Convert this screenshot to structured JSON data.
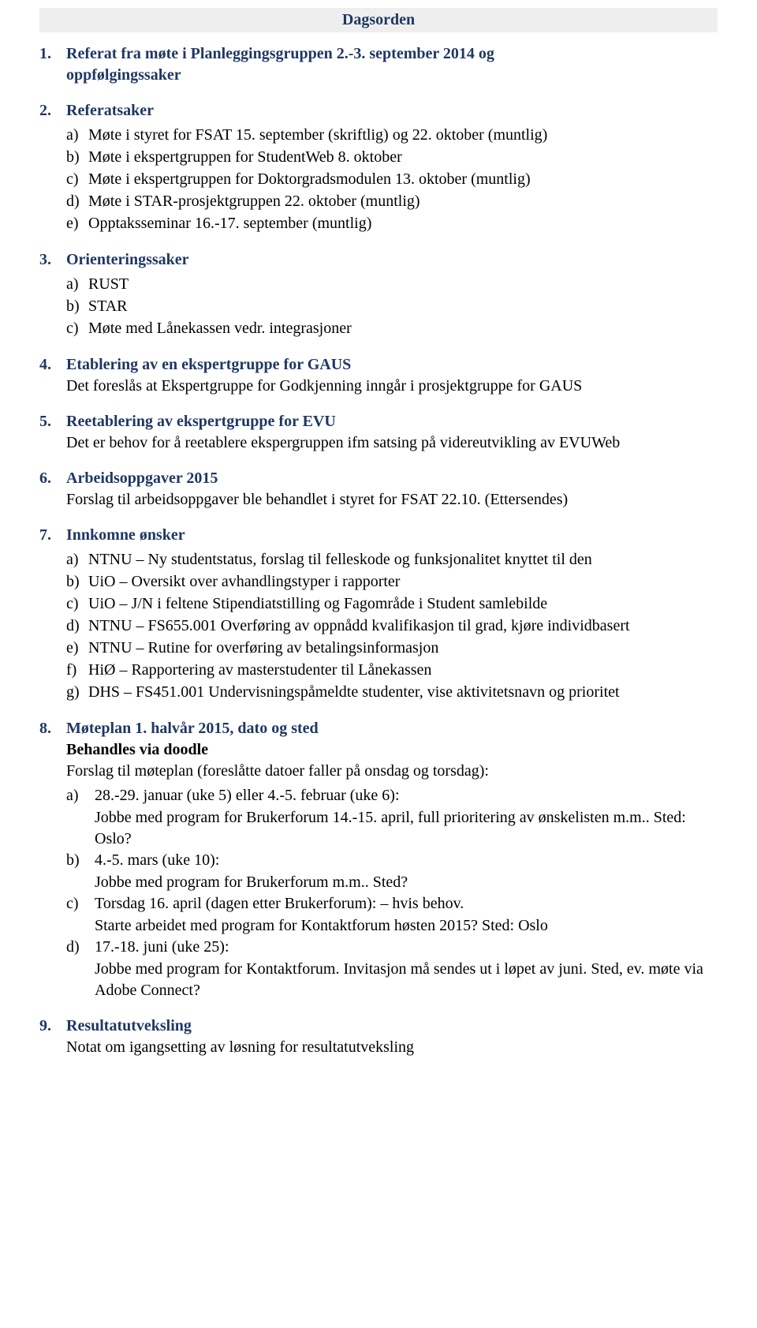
{
  "title": "Dagsorden",
  "colors": {
    "heading": "#1f3763",
    "body": "#000000",
    "title_bg": "#eeeeee",
    "page_bg": "#ffffff"
  },
  "typography": {
    "font_family": "Garamond, Times New Roman, serif",
    "body_size_pt": 15,
    "heading_bold": true
  },
  "sections": [
    {
      "num": "1.",
      "heading_line1": "Referat fra møte i Planleggingsgruppen 2.-3. september 2014 og",
      "heading_line2": "oppfølgingssaker"
    },
    {
      "num": "2.",
      "heading": "Referatsaker",
      "items": [
        {
          "lbl": "a)",
          "txt": "Møte i styret for FSAT 15. september (skriftlig) og 22. oktober (muntlig)"
        },
        {
          "lbl": "b)",
          "txt": "Møte i ekspertgruppen for StudentWeb 8. oktober"
        },
        {
          "lbl": "c)",
          "txt": "Møte i ekspertgruppen for Doktorgradsmodulen 13. oktober (muntlig)"
        },
        {
          "lbl": "d)",
          "txt": "Møte i STAR-prosjektgruppen 22. oktober (muntlig)"
        },
        {
          "lbl": "e)",
          "txt": "Opptaksseminar 16.-17. september (muntlig)"
        }
      ]
    },
    {
      "num": "3.",
      "heading": "Orienteringssaker",
      "items": [
        {
          "lbl": "a)",
          "txt": "RUST"
        },
        {
          "lbl": "b)",
          "txt": "STAR"
        },
        {
          "lbl": "c)",
          "txt": "Møte med Lånekassen vedr. integrasjoner"
        }
      ]
    },
    {
      "num": "4.",
      "heading": "Etablering av en ekspertgruppe for GAUS",
      "body": "Det foreslås at Ekspertgruppe for Godkjenning inngår i prosjektgruppe for GAUS"
    },
    {
      "num": "5.",
      "heading": "Reetablering av ekspertgruppe for EVU",
      "body": "Det er behov for å reetablere ekspergruppen ifm satsing på videreutvikling av EVUWeb"
    },
    {
      "num": "6.",
      "heading": "Arbeidsoppgaver 2015",
      "body": "Forslag til arbeidsoppgaver ble behandlet i styret for FSAT 22.10. (Ettersendes)"
    },
    {
      "num": "7.",
      "heading": "Innkomne ønsker",
      "items": [
        {
          "lbl": "a)",
          "txt": "NTNU – Ny studentstatus, forslag til felleskode og funksjonalitet knyttet til den"
        },
        {
          "lbl": "b)",
          "txt": "UiO – Oversikt over avhandlingstyper i rapporter"
        },
        {
          "lbl": "c)",
          "txt": "UiO – J/N i feltene Stipendiatstilling og Fagområde i Student samlebilde"
        },
        {
          "lbl": "d)",
          "txt": "NTNU – FS655.001 Overføring av oppnådd kvalifikasjon til grad, kjøre individbasert"
        },
        {
          "lbl": "e)",
          "txt": "NTNU – Rutine for overføring av betalingsinformasjon"
        },
        {
          "lbl": "f)",
          "txt": "HiØ – Rapportering av masterstudenter til Lånekassen"
        },
        {
          "lbl": "g)",
          "txt": "DHS – FS451.001 Undervisningspåmeldte studenter, vise aktivitetsnavn og prioritet"
        }
      ]
    },
    {
      "num": "8.",
      "heading": "Møteplan 1. halvår 2015, dato og sted",
      "subheading_bold": "Behandles via doodle",
      "intro": "Forslag til møteplan (foreslåtte datoer faller på onsdag og torsdag):",
      "items8": [
        {
          "lbl": "a)",
          "first": "28.-29. januar (uke 5) eller 4.-5. februar (uke 6):",
          "cont": "Jobbe med program for Brukerforum 14.-15. april, full prioritering av ønskelisten m.m.. Sted: Oslo?"
        },
        {
          "lbl": "b)",
          "first": "4.-5. mars (uke 10):",
          "cont": "Jobbe med program for Brukerforum m.m.. Sted?"
        },
        {
          "lbl": "c)",
          "first": "Torsdag 16. april (dagen etter Brukerforum): – hvis behov.",
          "cont": "Starte arbeidet med program for Kontaktforum høsten 2015? Sted: Oslo"
        },
        {
          "lbl": "d)",
          "first": "17.-18. juni (uke 25):",
          "cont": "Jobbe med program for Kontaktforum. Invitasjon må sendes ut i løpet av juni. Sted, ev. møte via Adobe Connect?"
        }
      ]
    },
    {
      "num": "9.",
      "heading": "Resultatutveksling",
      "body": "Notat om igangsetting av løsning for resultatutveksling"
    }
  ]
}
